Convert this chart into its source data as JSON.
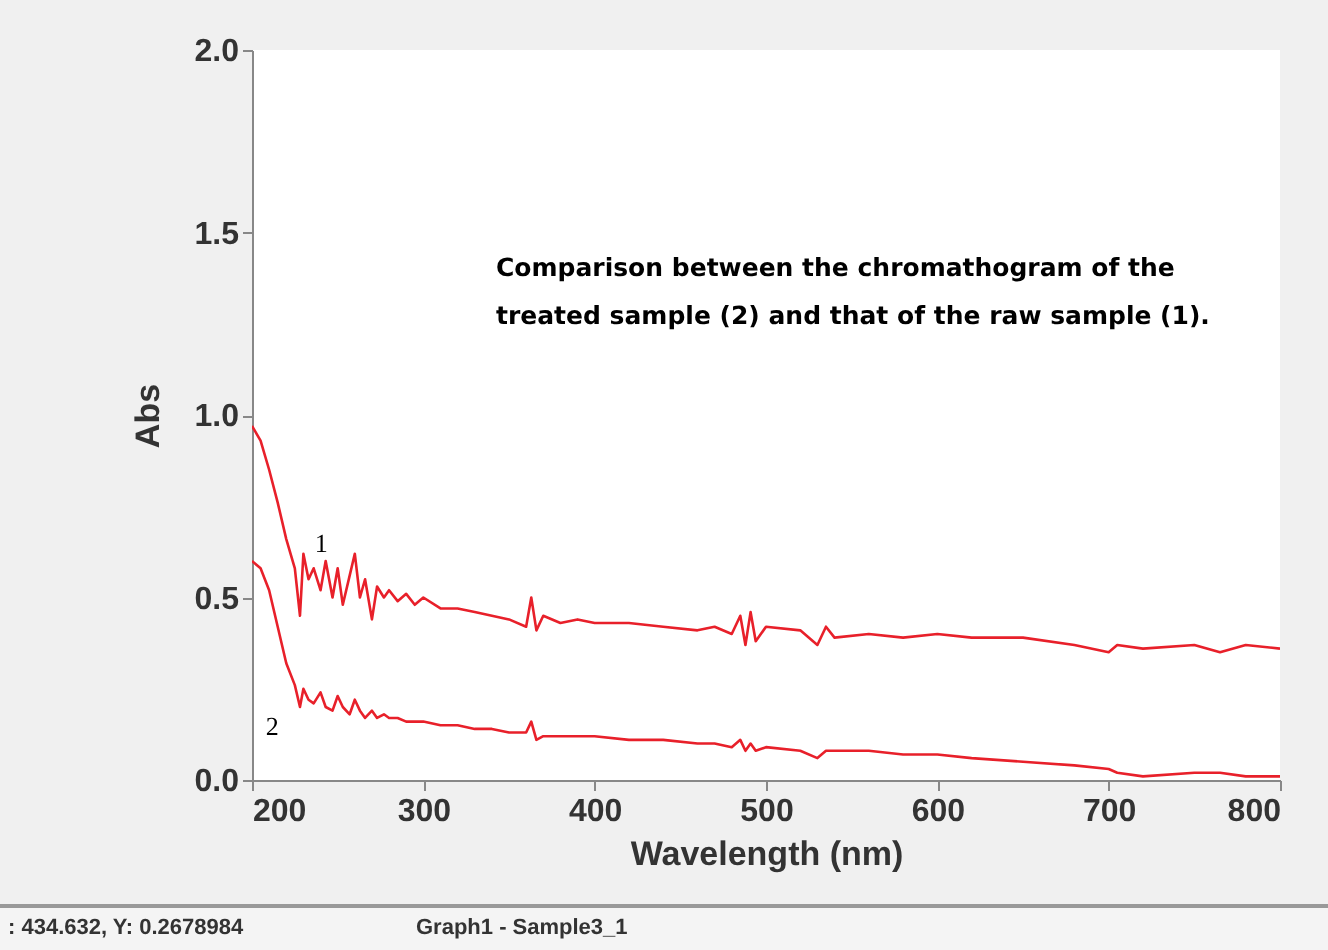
{
  "chart_data": {
    "type": "line",
    "xlabel": "Wavelength (nm)",
    "ylabel": "Abs",
    "xlim": [
      200,
      800
    ],
    "ylim": [
      0,
      2
    ],
    "xticks": [
      200,
      300,
      400,
      500,
      600,
      700,
      800
    ],
    "yticks": [
      {
        "value": 0,
        "label": "0.0"
      },
      {
        "value": 0.5,
        "label": "0.5"
      },
      {
        "value": 1,
        "label": "1.0"
      },
      {
        "value": 1.5,
        "label": "1.5"
      },
      {
        "value": 2,
        "label": "2.0"
      }
    ],
    "grid": false,
    "legend": false,
    "marker": "none",
    "line_style": "solid",
    "x": [
      200,
      205,
      210,
      215,
      220,
      225,
      228,
      230,
      233,
      236,
      240,
      243,
      247,
      250,
      253,
      257,
      260,
      263,
      266,
      270,
      273,
      277,
      280,
      285,
      290,
      295,
      300,
      310,
      320,
      330,
      340,
      350,
      360,
      363,
      366,
      370,
      380,
      390,
      400,
      420,
      440,
      460,
      470,
      480,
      485,
      488,
      491,
      494,
      500,
      520,
      530,
      535,
      540,
      560,
      580,
      600,
      620,
      650,
      680,
      700,
      705,
      720,
      750,
      765,
      780,
      800
    ],
    "series": [
      {
        "name": "1",
        "color": "#e8202a",
        "values": [
          0.97,
          0.93,
          0.85,
          0.76,
          0.66,
          0.58,
          0.45,
          0.62,
          0.55,
          0.58,
          0.52,
          0.6,
          0.5,
          0.58,
          0.48,
          0.56,
          0.62,
          0.5,
          0.55,
          0.44,
          0.53,
          0.5,
          0.52,
          0.49,
          0.51,
          0.48,
          0.5,
          0.47,
          0.47,
          0.46,
          0.45,
          0.44,
          0.42,
          0.5,
          0.41,
          0.45,
          0.43,
          0.44,
          0.43,
          0.43,
          0.42,
          0.41,
          0.42,
          0.4,
          0.45,
          0.37,
          0.46,
          0.38,
          0.42,
          0.41,
          0.37,
          0.42,
          0.39,
          0.4,
          0.39,
          0.4,
          0.39,
          0.39,
          0.37,
          0.35,
          0.37,
          0.36,
          0.37,
          0.35,
          0.37,
          0.36
        ]
      },
      {
        "name": "2",
        "color": "#e8202a",
        "values": [
          0.6,
          0.58,
          0.52,
          0.42,
          0.32,
          0.26,
          0.2,
          0.25,
          0.22,
          0.21,
          0.24,
          0.2,
          0.19,
          0.23,
          0.2,
          0.18,
          0.22,
          0.19,
          0.17,
          0.19,
          0.17,
          0.18,
          0.17,
          0.17,
          0.16,
          0.16,
          0.16,
          0.15,
          0.15,
          0.14,
          0.14,
          0.13,
          0.13,
          0.16,
          0.11,
          0.12,
          0.12,
          0.12,
          0.12,
          0.11,
          0.11,
          0.1,
          0.1,
          0.09,
          0.11,
          0.08,
          0.1,
          0.08,
          0.09,
          0.08,
          0.06,
          0.08,
          0.08,
          0.08,
          0.07,
          0.07,
          0.06,
          0.05,
          0.04,
          0.03,
          0.02,
          0.01,
          0.02,
          0.02,
          0.01,
          0.01
        ]
      }
    ],
    "annotations": [
      "Comparison between the chromathogram of the\ntreated sample (2) and that of the raw sample (1).",
      ": 434.632, Y: 0.2678984",
      "Graph1 - Sample3_1"
    ]
  }
}
